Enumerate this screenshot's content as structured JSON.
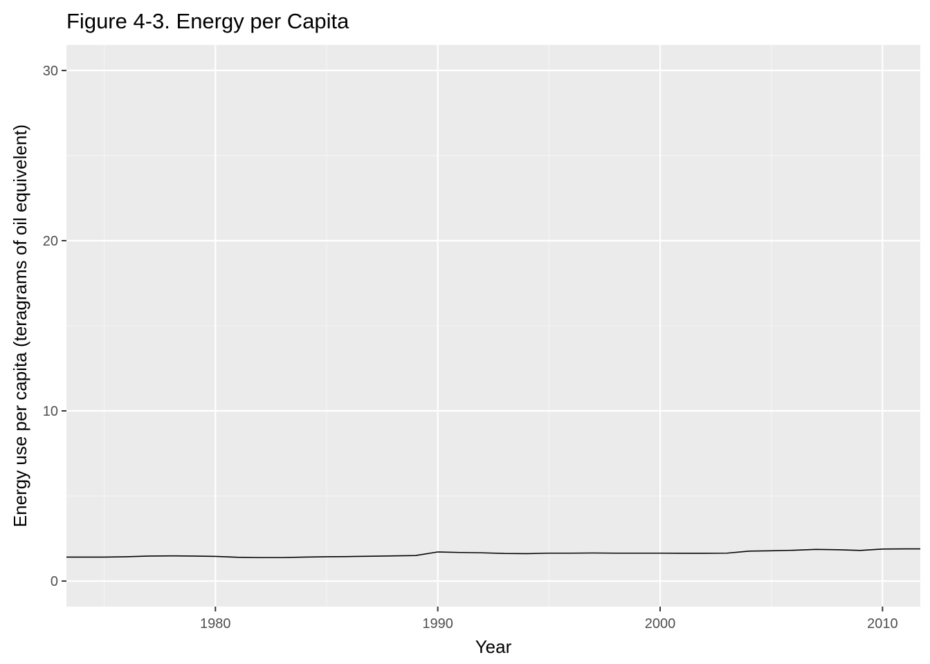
{
  "chart_data": {
    "type": "line",
    "title": "Figure 4-3. Energy per Capita",
    "xlabel": "Year",
    "ylabel": "Energy use per capita (teragrams of oil equivelent)",
    "xlim": [
      1973.3,
      2011.7
    ],
    "ylim": [
      -1.5,
      31.5
    ],
    "x_ticks": [
      1980,
      1990,
      2000,
      2010
    ],
    "x_tick_labels": [
      "1980",
      "1990",
      "2000",
      "2010"
    ],
    "x_minor_ticks": [
      1975,
      1985,
      1995,
      2005
    ],
    "y_ticks": [
      0,
      10,
      20,
      30
    ],
    "y_tick_labels": [
      "0",
      "10",
      "20",
      "30"
    ],
    "y_minor_ticks": [
      5,
      15,
      25
    ],
    "grid": true,
    "legend": "none",
    "colors": {
      "panel_background": "#ebebeb",
      "grid_major": "#ffffff",
      "grid_minor": "#f5f5f5",
      "line": "#000000",
      "tick_label": "#4d4d4d",
      "tick_mark": "#333333"
    },
    "series": [
      {
        "x": [
          1973.3,
          1975,
          1976,
          1977,
          1978,
          1979,
          1980,
          1981,
          1982,
          1983,
          1984,
          1985,
          1986,
          1987,
          1988,
          1989,
          1990,
          1991,
          1992,
          1993,
          1994,
          1995,
          1996,
          1997,
          1998,
          1999,
          2000,
          2001,
          2002,
          2003,
          2004,
          2005,
          2006,
          2007,
          2008,
          2009,
          2010,
          2011,
          2011.7
        ],
        "y": [
          1.41,
          1.41,
          1.43,
          1.47,
          1.48,
          1.47,
          1.45,
          1.4,
          1.38,
          1.38,
          1.41,
          1.43,
          1.44,
          1.46,
          1.48,
          1.5,
          1.71,
          1.68,
          1.66,
          1.62,
          1.61,
          1.64,
          1.64,
          1.65,
          1.64,
          1.64,
          1.64,
          1.63,
          1.63,
          1.64,
          1.76,
          1.78,
          1.81,
          1.86,
          1.84,
          1.8,
          1.88,
          1.89,
          1.89
        ]
      }
    ]
  }
}
